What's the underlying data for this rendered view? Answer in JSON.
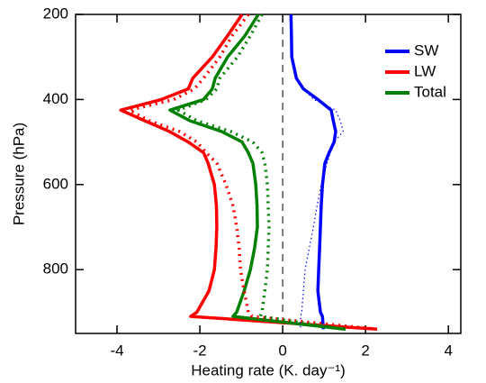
{
  "chart_data": {
    "type": "line",
    "orientation": "vertical-profile",
    "xlabel": "Heating rate (K. day⁻¹)",
    "ylabel": "Pressure (hPa)",
    "y": [
      200,
      250,
      300,
      350,
      375,
      400,
      425,
      450,
      475,
      500,
      525,
      550,
      600,
      650,
      700,
      750,
      800,
      850,
      900,
      910,
      940
    ],
    "xlim": [
      -5,
      4.3
    ],
    "xticks": [
      -4,
      -2,
      0,
      2,
      4
    ],
    "ylim": [
      200,
      950
    ],
    "yticks": [
      200,
      400,
      600,
      800
    ],
    "y_inverted": true,
    "legend": "upper right",
    "series": [
      {
        "name": "SW",
        "color": "#0000ff",
        "style": "solid",
        "values": [
          0.2,
          0.21,
          0.22,
          0.33,
          0.5,
          0.85,
          1.17,
          1.22,
          1.28,
          1.24,
          1.12,
          1.02,
          0.96,
          0.93,
          0.91,
          0.89,
          0.87,
          0.85,
          0.91,
          0.96,
          0.98
        ]
      },
      {
        "name": "LW",
        "color": "#ff0000",
        "style": "solid",
        "values": [
          -0.98,
          -1.33,
          -1.7,
          -2.17,
          -2.28,
          -2.93,
          -3.91,
          -3.33,
          -2.74,
          -2.28,
          -1.91,
          -1.8,
          -1.65,
          -1.6,
          -1.59,
          -1.61,
          -1.65,
          -1.78,
          -2.07,
          -2.22,
          2.28
        ]
      },
      {
        "name": "Total",
        "color": "#008000",
        "style": "solid",
        "values": [
          -0.59,
          -0.91,
          -1.33,
          -1.63,
          -1.7,
          -1.91,
          -2.72,
          -2.24,
          -1.48,
          -0.98,
          -0.83,
          -0.72,
          -0.65,
          -0.62,
          -0.61,
          -0.68,
          -0.78,
          -0.93,
          -1.11,
          -1.2,
          1.52
        ]
      },
      {
        "color": "#0000ff",
        "style": "thin-dotted",
        "values": [
          0.2,
          0.21,
          0.22,
          0.33,
          0.5,
          0.75,
          1.28,
          1.39,
          1.46,
          1.24,
          1.15,
          1.07,
          0.93,
          0.83,
          0.74,
          0.64,
          0.54,
          0.5,
          0.46,
          0.43,
          0.43
        ]
      },
      {
        "color": "#ff0000",
        "style": "dotted",
        "values": [
          -0.83,
          -1.22,
          -1.52,
          -1.91,
          -2.13,
          -2.63,
          -3.7,
          -3.22,
          -2.5,
          -2.07,
          -1.85,
          -1.59,
          -1.37,
          -1.2,
          -1.11,
          -1.05,
          -1.02,
          -0.93,
          -0.83,
          -0.74,
          2.28
        ]
      },
      {
        "color": "#008000",
        "style": "dotted",
        "values": [
          -0.5,
          -0.78,
          -1.09,
          -1.52,
          -1.59,
          -1.85,
          -2.52,
          -2.07,
          -1.26,
          -0.72,
          -0.5,
          -0.43,
          -0.37,
          -0.35,
          -0.33,
          -0.35,
          -0.37,
          -0.43,
          -0.5,
          -0.54,
          1.52
        ]
      }
    ]
  }
}
